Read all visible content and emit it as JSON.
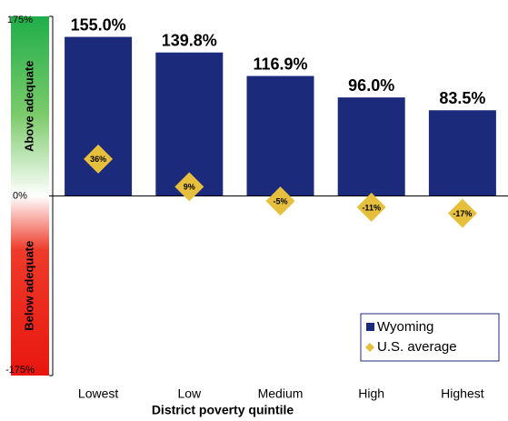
{
  "chart_data": {
    "type": "bar",
    "x_label": "District poverty quintile",
    "annotations": [
      "Above adequate",
      "Below adequate"
    ],
    "categories": [
      "Lowest",
      "Low",
      "Medium",
      "High",
      "Highest"
    ],
    "series": [
      {
        "name": "Wyoming",
        "color": "#1c2a7c",
        "values": [
          155.0,
          139.8,
          116.9,
          96.0,
          83.5
        ],
        "value_labels": [
          "155.0%",
          "139.8%",
          "116.9%",
          "96.0%",
          "83.5%"
        ]
      },
      {
        "name": "U.S. average",
        "color": "#e6c03c",
        "marker": "diamond",
        "values": [
          36,
          9,
          -5,
          -11,
          -17
        ],
        "value_labels": [
          "36%",
          "9%",
          "-5%",
          "-11%",
          "-17%"
        ]
      }
    ],
    "ylim": [
      -175,
      175
    ],
    "yticks": [
      {
        "value": -175,
        "label": "-175%"
      },
      {
        "value": 0,
        "label": "0%"
      },
      {
        "value": 175,
        "label": "175%"
      }
    ],
    "legend": "bottom-right"
  }
}
